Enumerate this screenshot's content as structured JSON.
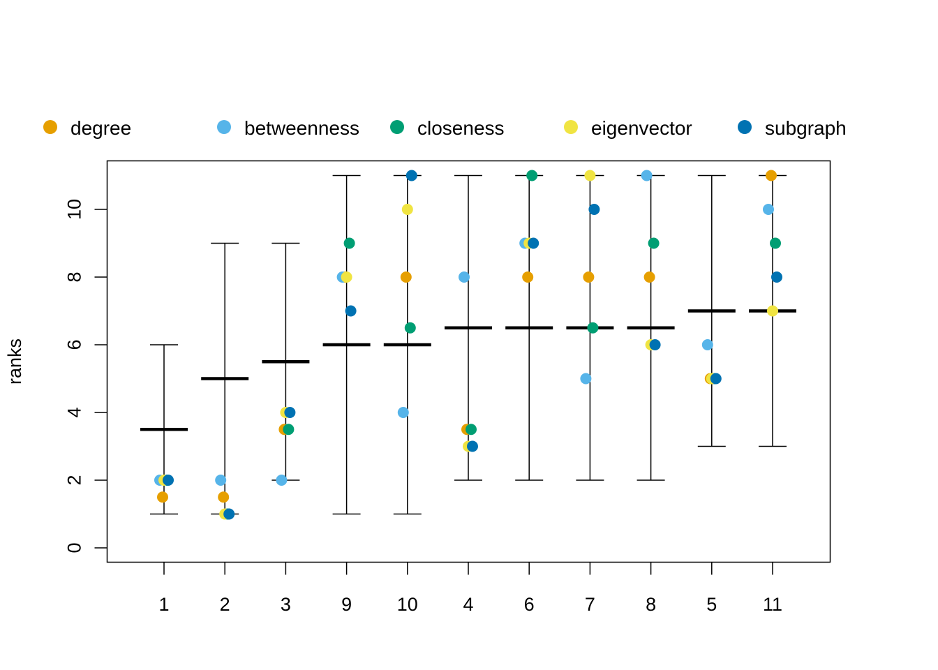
{
  "chart_data": {
    "type": "scatter",
    "ylabel": "ranks",
    "xlabel": "",
    "title": "",
    "ylim": [
      0,
      11
    ],
    "yticks": [
      0,
      2,
      4,
      6,
      8,
      10
    ],
    "grid": false,
    "legend_position": "top",
    "categories": [
      "1",
      "2",
      "3",
      "9",
      "10",
      "4",
      "6",
      "7",
      "8",
      "5",
      "11"
    ],
    "range_bars": {
      "min": [
        1,
        1,
        2,
        1,
        1,
        2,
        2,
        2,
        2,
        3,
        3
      ],
      "max": [
        6,
        9,
        9,
        11,
        11,
        11,
        11,
        11,
        11,
        11,
        11
      ],
      "median": [
        3.5,
        5,
        5.5,
        6,
        6,
        6.5,
        6.5,
        6.5,
        6.5,
        7,
        7
      ]
    },
    "series": [
      {
        "name": "degree",
        "color": "#E69F00",
        "values": [
          1.5,
          1.5,
          3.5,
          8,
          8,
          3.5,
          8,
          8,
          8,
          5,
          11
        ]
      },
      {
        "name": "betweenness",
        "color": "#56B4E9",
        "values": [
          2,
          2,
          2,
          8,
          4,
          8,
          9,
          5,
          11,
          6,
          10
        ]
      },
      {
        "name": "closeness",
        "color": "#009E73",
        "values": [
          2,
          1,
          3.5,
          9,
          6.5,
          3.5,
          11,
          6.5,
          9,
          5,
          9
        ]
      },
      {
        "name": "eigenvector",
        "color": "#F0E442",
        "values": [
          2,
          1,
          4,
          8,
          10,
          3,
          9,
          11,
          6,
          5,
          7
        ]
      },
      {
        "name": "subgraph",
        "color": "#0072B2",
        "values": [
          2,
          1,
          4,
          7,
          11,
          3,
          9,
          10,
          6,
          5,
          8
        ]
      }
    ]
  }
}
